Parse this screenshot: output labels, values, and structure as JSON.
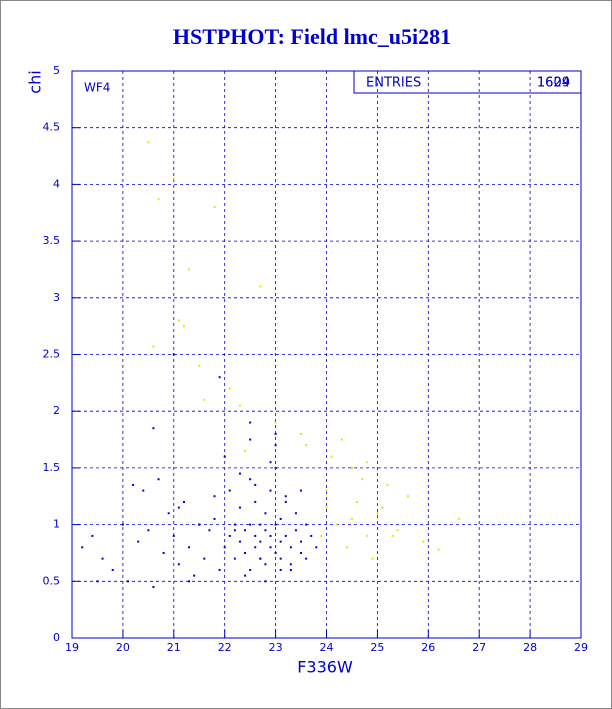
{
  "chart_data": {
    "type": "scatter",
    "title": "HSTPHOT: Field lmc_u5i281",
    "xlabel": "F336W",
    "ylabel": "chi",
    "panel_label": "WF4",
    "stats_box": {
      "label": "ENTRIES",
      "values": [
        "1609",
        "1624"
      ]
    },
    "xlim": [
      19,
      29
    ],
    "xticks": [
      19,
      20,
      21,
      22,
      23,
      24,
      25,
      26,
      27,
      28,
      29
    ],
    "ylim": [
      0,
      5
    ],
    "yticks": [
      0,
      0.5,
      1,
      1.5,
      2,
      2.5,
      3,
      3.5,
      4,
      4.5,
      5
    ],
    "grid": true,
    "axis_color": "#0000cc",
    "series": [
      {
        "color": "#0000cc",
        "x": [
          19.2,
          19.4,
          19.6,
          19.8,
          20.0,
          20.1,
          20.3,
          20.5,
          20.6,
          20.8,
          20.9,
          21.0,
          21.1,
          21.2,
          21.3,
          21.4,
          21.5,
          21.6,
          21.7,
          21.8,
          21.9,
          22.0,
          22.1,
          22.1,
          22.2,
          22.2,
          22.3,
          22.3,
          22.4,
          22.4,
          22.5,
          22.5,
          22.5,
          22.6,
          22.6,
          22.6,
          22.7,
          22.7,
          22.7,
          22.8,
          22.8,
          22.8,
          22.9,
          22.9,
          22.9,
          23.0,
          23.0,
          23.0,
          23.1,
          23.1,
          23.1,
          23.2,
          23.2,
          23.3,
          23.3,
          23.4,
          23.4,
          23.5,
          23.5,
          23.6,
          23.6,
          23.7,
          23.8,
          22.0,
          22.3,
          22.6,
          22.9,
          23.2,
          23.5,
          22.4,
          22.8,
          23.1,
          22.5,
          23.0,
          20.4,
          20.7,
          21.1,
          21.5,
          21.8,
          19.5,
          20.2,
          21.3,
          22.2,
          22.7,
          23.3,
          20.6,
          21.0,
          22.5,
          23.0,
          21.9
        ],
        "values": [
          0.8,
          0.9,
          0.7,
          0.6,
          1.0,
          0.5,
          0.85,
          0.95,
          0.45,
          0.75,
          1.1,
          0.9,
          0.65,
          1.2,
          0.8,
          0.55,
          1.0,
          0.7,
          0.95,
          1.05,
          0.6,
          0.8,
          1.3,
          0.9,
          0.7,
          1.0,
          0.85,
          1.15,
          0.75,
          0.95,
          0.6,
          1.0,
          1.4,
          0.8,
          0.9,
          1.2,
          0.7,
          1.0,
          0.85,
          0.65,
          0.95,
          1.1,
          0.8,
          1.3,
          0.9,
          0.75,
          1.0,
          1.5,
          0.85,
          0.7,
          1.05,
          0.9,
          1.2,
          0.8,
          0.6,
          0.95,
          1.1,
          0.75,
          0.85,
          1.0,
          0.7,
          0.9,
          0.8,
          1.6,
          1.45,
          1.35,
          1.55,
          1.25,
          1.3,
          0.55,
          0.5,
          0.6,
          1.75,
          1.7,
          1.3,
          1.4,
          1.15,
          1.0,
          1.25,
          0.5,
          1.35,
          0.5,
          0.95,
          0.7,
          0.65,
          1.85,
          2.5,
          1.9,
          1.8,
          2.3
        ]
      },
      {
        "color": "#e6e600",
        "x": [
          20.5,
          20.7,
          21.0,
          21.1,
          21.3,
          21.5,
          21.8,
          22.7,
          20.6,
          21.2,
          22.3,
          23.5,
          24.0,
          24.2,
          24.4,
          24.5,
          24.6,
          24.8,
          25.0,
          25.2,
          25.4,
          25.6,
          25.9,
          26.2,
          26.6,
          24.1,
          24.3,
          24.7,
          24.9,
          25.1,
          23.9,
          24.0,
          24.5,
          25.3,
          21.6,
          22.1,
          22.4,
          23.0,
          23.6,
          24.8
        ],
        "values": [
          4.37,
          3.87,
          4.05,
          2.8,
          3.25,
          2.4,
          3.8,
          3.1,
          2.57,
          2.75,
          2.05,
          1.8,
          1.3,
          1.0,
          0.8,
          1.5,
          1.2,
          0.9,
          1.1,
          1.35,
          0.95,
          1.25,
          0.85,
          0.78,
          1.05,
          1.6,
          1.75,
          1.4,
          0.7,
          1.15,
          0.9,
          1.15,
          1.05,
          0.9,
          2.1,
          2.2,
          1.65,
          1.9,
          1.7,
          1.55
        ]
      }
    ]
  }
}
